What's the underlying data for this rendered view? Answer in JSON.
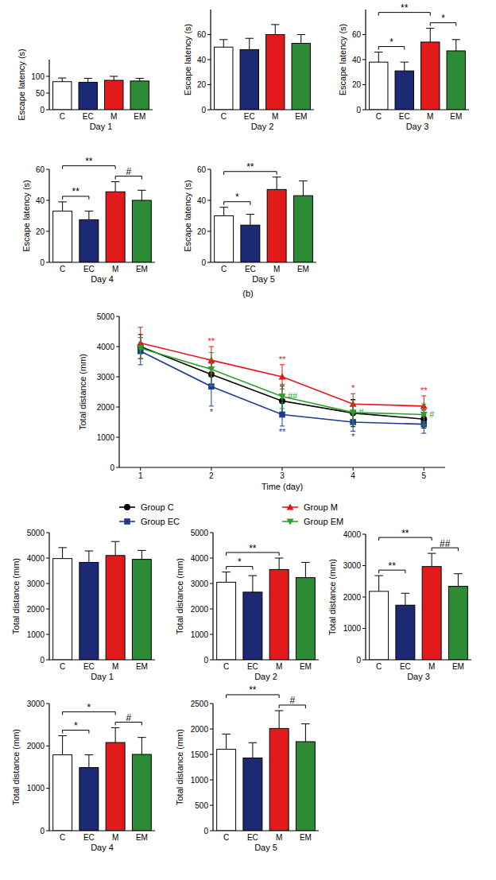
{
  "panel_label": "(b)",
  "chart_data": [
    {
      "type": "bar",
      "x_label": "Day 1",
      "y_label": "Escape latency (s)",
      "categories": [
        "C",
        "EC",
        "M",
        "EM"
      ],
      "values": [
        84,
        82,
        88,
        86
      ],
      "errors": [
        11,
        12,
        12,
        8
      ],
      "colors": [
        "#ffffff",
        "#1b2a72",
        "#e31a1c",
        "#2e8b35"
      ],
      "ylim": [
        0,
        150
      ],
      "yticks": [
        0,
        50,
        100
      ],
      "annotations": []
    },
    {
      "type": "bar",
      "x_label": "Day 2",
      "y_label": "Escape latency (s)",
      "categories": [
        "C",
        "EC",
        "M",
        "EM"
      ],
      "values": [
        50,
        48,
        60,
        53
      ],
      "errors": [
        6,
        9,
        8,
        7
      ],
      "colors": [
        "#ffffff",
        "#1b2a72",
        "#e31a1c",
        "#2e8b35"
      ],
      "ylim": [
        0,
        80
      ],
      "yticks": [
        0,
        20,
        40,
        60
      ],
      "annotations": []
    },
    {
      "type": "bar",
      "x_label": "Day 3",
      "y_label": "Escape latency (s)",
      "categories": [
        "C",
        "EC",
        "M",
        "EM"
      ],
      "values": [
        38,
        31,
        54,
        47
      ],
      "errors": [
        8,
        7,
        11,
        9
      ],
      "colors": [
        "#ffffff",
        "#1b2a72",
        "#e31a1c",
        "#2e8b35"
      ],
      "ylim": [
        0,
        80
      ],
      "yticks": [
        0,
        20,
        40,
        60
      ],
      "annotations": [
        {
          "from": 0,
          "to": 1,
          "label": "*"
        },
        {
          "from": 2,
          "to": 3,
          "label": "*"
        },
        {
          "from": 0,
          "to": 2,
          "label": "**"
        }
      ]
    },
    {
      "type": "bar",
      "x_label": "Day 4",
      "y_label": "Escape latency (s)",
      "categories": [
        "C",
        "EC",
        "M",
        "EM"
      ],
      "values": [
        33,
        27.5,
        45.5,
        40
      ],
      "errors": [
        6,
        5.5,
        6.5,
        6.5
      ],
      "colors": [
        "#ffffff",
        "#1b2a72",
        "#e31a1c",
        "#2e8b35"
      ],
      "ylim": [
        0,
        60
      ],
      "yticks": [
        0,
        20,
        40,
        60
      ],
      "annotations": [
        {
          "from": 0,
          "to": 1,
          "label": "**"
        },
        {
          "from": 2,
          "to": 3,
          "label": "#"
        },
        {
          "from": 0,
          "to": 2,
          "label": "**"
        }
      ]
    },
    {
      "type": "bar",
      "x_label": "Day 5",
      "y_label": "Escape latency (s)",
      "categories": [
        "C",
        "EC",
        "M",
        "EM"
      ],
      "values": [
        30,
        24,
        47,
        43
      ],
      "errors": [
        5.5,
        7,
        8,
        9.5
      ],
      "colors": [
        "#ffffff",
        "#1b2a72",
        "#e31a1c",
        "#2e8b35"
      ],
      "ylim": [
        0,
        60
      ],
      "yticks": [
        0,
        20,
        40,
        60
      ],
      "annotations": [
        {
          "from": 0,
          "to": 1,
          "label": "*"
        },
        {
          "from": 0,
          "to": 2,
          "label": "**"
        }
      ]
    },
    {
      "type": "line",
      "x_label": "Time (day)",
      "y_label": "Total distance (mm)",
      "x": [
        1,
        2,
        3,
        4,
        5
      ],
      "xlim": [
        0.7,
        5.3
      ],
      "xticks": [
        1,
        2,
        3,
        4,
        5
      ],
      "ylim": [
        0,
        5000
      ],
      "yticks": [
        0,
        1000,
        2000,
        3000,
        4000,
        5000
      ],
      "legend": "bottom",
      "series": [
        {
          "name": "Group C",
          "color": "#000000",
          "marker": "circle",
          "values": [
            4000,
            3080,
            2200,
            1800,
            1600
          ],
          "errors": [
            400,
            370,
            500,
            450,
            300
          ]
        },
        {
          "name": "Group EC",
          "color": "#1f3a93",
          "marker": "square",
          "values": [
            3850,
            2680,
            1750,
            1500,
            1430
          ],
          "errors": [
            450,
            650,
            380,
            300,
            300
          ]
        },
        {
          "name": "Group M",
          "color": "#e8121b",
          "marker": "triangle",
          "values": [
            4120,
            3550,
            3000,
            2100,
            2030
          ],
          "errors": [
            520,
            450,
            400,
            340,
            340
          ]
        },
        {
          "name": "Group EM",
          "color": "#2ca02c",
          "marker": "triangle_down",
          "values": [
            3950,
            3250,
            2350,
            1820,
            1750
          ],
          "errors": [
            350,
            550,
            400,
            400,
            350
          ]
        }
      ],
      "annotations": [
        {
          "series": "Group M",
          "x": 2,
          "label": "**"
        },
        {
          "series": "Group EC",
          "x": 2,
          "label": "*"
        },
        {
          "series": "Group M",
          "x": 3,
          "label": "**"
        },
        {
          "series": "Group EM",
          "x": 3,
          "label": "##"
        },
        {
          "series": "Group EC",
          "x": 3,
          "label": "**"
        },
        {
          "series": "Group M",
          "x": 4,
          "label": "*"
        },
        {
          "series": "Group EM",
          "x": 4,
          "label": "#"
        },
        {
          "series": "Group EC",
          "x": 4,
          "label": "*"
        },
        {
          "series": "Group M",
          "x": 5,
          "label": "**"
        },
        {
          "series": "Group EM",
          "x": 5,
          "label": "#"
        }
      ]
    },
    {
      "type": "bar",
      "x_label": "Day 1",
      "y_label": "Total distance (mm)",
      "categories": [
        "C",
        "EC",
        "M",
        "EM"
      ],
      "values": [
        3980,
        3830,
        4100,
        3950
      ],
      "errors": [
        430,
        450,
        550,
        350
      ],
      "colors": [
        "#ffffff",
        "#1b2a72",
        "#e31a1c",
        "#2e8b35"
      ],
      "ylim": [
        0,
        5000
      ],
      "yticks": [
        0,
        1000,
        2000,
        3000,
        4000,
        5000
      ],
      "annotations": []
    },
    {
      "type": "bar",
      "x_label": "Day 2",
      "y_label": "Total distance (mm)",
      "categories": [
        "C",
        "EC",
        "M",
        "EM"
      ],
      "values": [
        3050,
        2660,
        3550,
        3230
      ],
      "errors": [
        400,
        650,
        450,
        600
      ],
      "colors": [
        "#ffffff",
        "#1b2a72",
        "#e31a1c",
        "#2e8b35"
      ],
      "ylim": [
        0,
        5000
      ],
      "yticks": [
        0,
        1000,
        2000,
        3000,
        4000,
        5000
      ],
      "annotations": [
        {
          "from": 0,
          "to": 1,
          "label": "*"
        },
        {
          "from": 0,
          "to": 2,
          "label": "**"
        }
      ]
    },
    {
      "type": "bar",
      "x_label": "Day 3",
      "y_label": "Total distance (mm)",
      "categories": [
        "C",
        "EC",
        "M",
        "EM"
      ],
      "values": [
        2180,
        1740,
        2970,
        2340
      ],
      "errors": [
        500,
        380,
        420,
        400
      ],
      "colors": [
        "#ffffff",
        "#1b2a72",
        "#e31a1c",
        "#2e8b35"
      ],
      "ylim": [
        0,
        4000
      ],
      "yticks": [
        0,
        1000,
        2000,
        3000,
        4000
      ],
      "annotations": [
        {
          "from": 0,
          "to": 1,
          "label": "**"
        },
        {
          "from": 2,
          "to": 3,
          "label": "##"
        },
        {
          "from": 0,
          "to": 2,
          "label": "**"
        }
      ]
    },
    {
      "type": "bar",
      "x_label": "Day 4",
      "y_label": "Total distance (mm)",
      "categories": [
        "C",
        "EC",
        "M",
        "EM"
      ],
      "values": [
        1790,
        1490,
        2080,
        1800
      ],
      "errors": [
        450,
        300,
        350,
        400
      ],
      "colors": [
        "#ffffff",
        "#1b2a72",
        "#e31a1c",
        "#2e8b35"
      ],
      "ylim": [
        0,
        3000
      ],
      "yticks": [
        0,
        1000,
        2000,
        3000
      ],
      "annotations": [
        {
          "from": 0,
          "to": 1,
          "label": "*"
        },
        {
          "from": 2,
          "to": 3,
          "label": "#"
        },
        {
          "from": 0,
          "to": 2,
          "label": "*"
        }
      ]
    },
    {
      "type": "bar",
      "x_label": "Day 5",
      "y_label": "Total distance (mm)",
      "categories": [
        "C",
        "EC",
        "M",
        "EM"
      ],
      "values": [
        1600,
        1430,
        2010,
        1750
      ],
      "errors": [
        300,
        300,
        350,
        350
      ],
      "colors": [
        "#ffffff",
        "#1b2a72",
        "#e31a1c",
        "#2e8b35"
      ],
      "ylim": [
        0,
        2500
      ],
      "yticks": [
        0,
        500,
        1000,
        1500,
        2000,
        2500
      ],
      "annotations": [
        {
          "from": 2,
          "to": 3,
          "label": "#"
        },
        {
          "from": 0,
          "to": 2,
          "label": "**"
        }
      ]
    }
  ]
}
